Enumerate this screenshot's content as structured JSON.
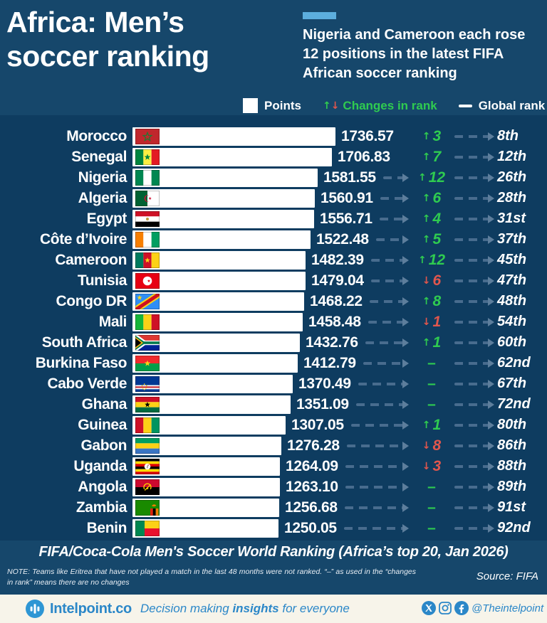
{
  "header": {
    "title_lines": [
      "Africa: Men’s",
      "soccer ranking"
    ],
    "subtitle": "Nigeria and Cameroon each rose 12 positions in the latest FIFA African soccer ranking",
    "accent_color": "#5caede"
  },
  "legend": {
    "points_label": "Points",
    "up_arrow": "↑",
    "down_arrow": "↓",
    "changes_label": "Changes in rank",
    "global_label": "Global rank"
  },
  "chart_data": {
    "type": "bar",
    "orientation": "horizontal",
    "title": "FIFA/Coca-Cola Men's Soccer World Ranking (Africa’s top 20, Jan 2026)",
    "value_label": "Points",
    "max_points": "1736.57",
    "rows": [
      {
        "country": "Morocco",
        "flag": "morocco",
        "points": "1736.57",
        "change_dir": "up",
        "change": "3",
        "global_rank": "8th"
      },
      {
        "country": "Senegal",
        "flag": "senegal",
        "points": "1706.83",
        "change_dir": "up",
        "change": "7",
        "global_rank": "12th"
      },
      {
        "country": "Nigeria",
        "flag": "nigeria",
        "points": "1581.55",
        "change_dir": "up",
        "change": "12",
        "global_rank": "26th"
      },
      {
        "country": "Algeria",
        "flag": "algeria",
        "points": "1560.91",
        "change_dir": "up",
        "change": "6",
        "global_rank": "28th"
      },
      {
        "country": "Egypt",
        "flag": "egypt",
        "points": "1556.71",
        "change_dir": "up",
        "change": "4",
        "global_rank": "31st"
      },
      {
        "country": "Côte d’Ivoire",
        "flag": "cote-divoire",
        "points": "1522.48",
        "change_dir": "up",
        "change": "5",
        "global_rank": "37th"
      },
      {
        "country": "Cameroon",
        "flag": "cameroon",
        "points": "1482.39",
        "change_dir": "up",
        "change": "12",
        "global_rank": "45th"
      },
      {
        "country": "Tunisia",
        "flag": "tunisia",
        "points": "1479.04",
        "change_dir": "down",
        "change": "6",
        "global_rank": "47th"
      },
      {
        "country": "Congo DR",
        "flag": "congo-dr",
        "points": "1468.22",
        "change_dir": "up",
        "change": "8",
        "global_rank": "48th"
      },
      {
        "country": "Mali",
        "flag": "mali",
        "points": "1458.48",
        "change_dir": "down",
        "change": "1",
        "global_rank": "54th"
      },
      {
        "country": "South Africa",
        "flag": "south-africa",
        "points": "1432.76",
        "change_dir": "up",
        "change": "1",
        "global_rank": "60th"
      },
      {
        "country": "Burkina Faso",
        "flag": "burkina-faso",
        "points": "1412.79",
        "change_dir": "none",
        "change": "–",
        "global_rank": "62nd"
      },
      {
        "country": "Cabo Verde",
        "flag": "cabo-verde",
        "points": "1370.49",
        "change_dir": "none",
        "change": "–",
        "global_rank": "67th"
      },
      {
        "country": "Ghana",
        "flag": "ghana",
        "points": "1351.09",
        "change_dir": "none",
        "change": "–",
        "global_rank": "72nd"
      },
      {
        "country": "Guinea",
        "flag": "guinea",
        "points": "1307.05",
        "change_dir": "up",
        "change": "1",
        "global_rank": "80th"
      },
      {
        "country": "Gabon",
        "flag": "gabon",
        "points": "1276.28",
        "change_dir": "down",
        "change": "8",
        "global_rank": "86th"
      },
      {
        "country": "Uganda",
        "flag": "uganda",
        "points": "1264.09",
        "change_dir": "down",
        "change": "3",
        "global_rank": "88th"
      },
      {
        "country": "Angola",
        "flag": "angola",
        "points": "1263.10",
        "change_dir": "none",
        "change": "–",
        "global_rank": "89th"
      },
      {
        "country": "Zambia",
        "flag": "zambia",
        "points": "1256.68",
        "change_dir": "none",
        "change": "–",
        "global_rank": "91st"
      },
      {
        "country": "Benin",
        "flag": "benin",
        "points": "1250.05",
        "change_dir": "none",
        "change": "–",
        "global_rank": "92nd"
      }
    ]
  },
  "footer": {
    "note": "NOTE: Teams like Eritrea that have not played a match in the last 48 months were not ranked. “–” as used in the “changes in rank” means there are no changes",
    "source": "Source: FIFA"
  },
  "bottom_bar": {
    "brand": "Intelpoint.co",
    "tagline_pre": "Decision making ",
    "tagline_bold": "insights",
    "tagline_post": " for everyone",
    "handle": "@Theintelpoint"
  },
  "colors": {
    "header_bg": "#16476b",
    "chart_bg": "#0e3c60",
    "positive_green": "#2fcb50",
    "negative_red": "#e0564d",
    "connector": "#486c8e",
    "accent_blue": "#5caede",
    "bottombar_bg": "#f7f4ea",
    "brand_blue": "#2b87c8"
  }
}
